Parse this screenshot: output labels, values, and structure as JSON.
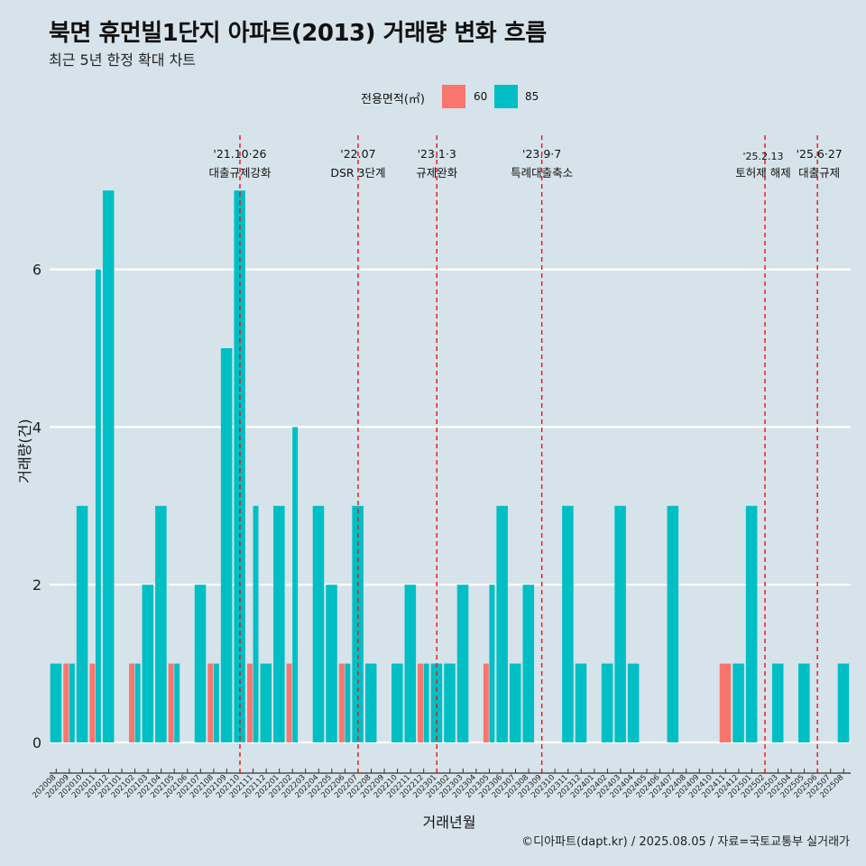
{
  "chart_data": {
    "type": "bar",
    "title": "북면 휴먼빌1단지 아파트(2013) 거래량 변화 흐름",
    "subtitle": "최근 5년 한정 확대 차트",
    "xlabel": "거래년월",
    "ylabel": "거래량(건)",
    "caption": "©디아파트(dapt.kr) / 2025.08.05 / 자료=국토교통부 실거래가",
    "legend_title": "전용면적(㎡)",
    "legend_position": "top",
    "grid": true,
    "ylim": [
      0,
      7
    ],
    "yticks": [
      0,
      2,
      4,
      6
    ],
    "categories": [
      "202008",
      "202009",
      "202010",
      "202011",
      "202012",
      "202101",
      "202102",
      "202103",
      "202104",
      "202105",
      "202106",
      "202107",
      "202108",
      "202109",
      "202110",
      "202111",
      "202112",
      "202201",
      "202202",
      "202203",
      "202204",
      "202205",
      "202206",
      "202207",
      "202208",
      "202209",
      "202210",
      "202211",
      "202212",
      "202301",
      "202302",
      "202303",
      "202304",
      "202305",
      "202306",
      "202307",
      "202308",
      "202309",
      "202310",
      "202311",
      "202312",
      "202401",
      "202402",
      "202403",
      "202404",
      "202405",
      "202406",
      "202407",
      "202408",
      "202409",
      "202410",
      "202411",
      "202412",
      "202501",
      "202502",
      "202503",
      "202504",
      "202505",
      "202506",
      "202507",
      "202508"
    ],
    "series": [
      {
        "name": "60",
        "color": "#f8766d",
        "values": [
          0,
          1,
          0,
          1,
          0,
          0,
          1,
          0,
          0,
          1,
          0,
          0,
          1,
          0,
          0,
          1,
          0,
          0,
          1,
          0,
          0,
          0,
          1,
          0,
          0,
          0,
          0,
          0,
          1,
          0,
          0,
          0,
          0,
          1,
          0,
          0,
          0,
          0,
          0,
          0,
          0,
          0,
          0,
          0,
          0,
          0,
          0,
          0,
          0,
          0,
          0,
          1,
          0,
          0,
          0,
          0,
          0,
          0,
          0,
          0,
          0
        ]
      },
      {
        "name": "85",
        "color": "#00bfc4",
        "values": [
          1,
          1,
          3,
          6,
          7,
          0,
          1,
          2,
          3,
          1,
          0,
          2,
          1,
          5,
          7,
          3,
          1,
          3,
          4,
          0,
          3,
          2,
          1,
          3,
          1,
          0,
          1,
          2,
          1,
          1,
          1,
          2,
          0,
          2,
          3,
          1,
          2,
          0,
          0,
          3,
          1,
          0,
          1,
          3,
          1,
          0,
          0,
          3,
          0,
          0,
          0,
          0,
          1,
          3,
          0,
          1,
          0,
          1,
          0,
          0,
          1
        ]
      }
    ],
    "annotations": [
      {
        "date": "202110",
        "line1": "'21.10·26",
        "line2": "대출규제강화"
      },
      {
        "date": "202207",
        "line1": "'22.07",
        "line2": "DSR 3단계"
      },
      {
        "date": "202301",
        "line1": "'23.1·3",
        "line2": "규제완화"
      },
      {
        "date": "202309",
        "line1": "'23.9·7",
        "line2": "특례대출축소"
      },
      {
        "date": "202502",
        "line1": "'25.2.13",
        "line2": "토허제 해제"
      },
      {
        "date": "202506",
        "line1": "'25.6·27",
        "line2": "대출규제"
      }
    ]
  }
}
